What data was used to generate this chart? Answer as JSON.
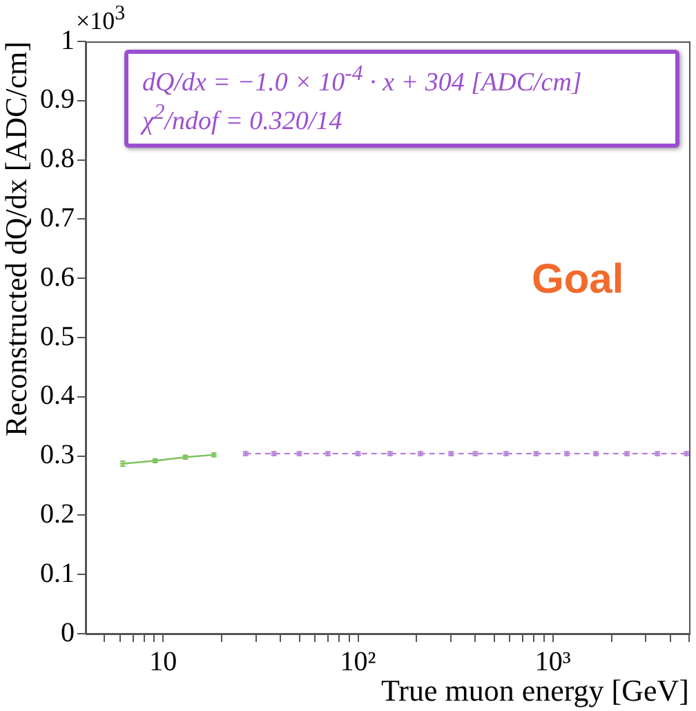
{
  "chart_data": {
    "type": "line",
    "xlabel": "True muon energy [GeV]",
    "ylabel": "Reconstructed dQ/dx [ADC/cm]",
    "log": "x",
    "xlim": [
      4,
      5000
    ],
    "ylim": [
      0,
      1
    ],
    "xticks": [
      {
        "value": 5,
        "label": null
      },
      {
        "value": 6,
        "label": null
      },
      {
        "value": 7,
        "label": null
      },
      {
        "value": 8,
        "label": null
      },
      {
        "value": 9,
        "label": null
      },
      {
        "value": 10,
        "label": "10"
      },
      {
        "value": 20,
        "label": null
      },
      {
        "value": 30,
        "label": null
      },
      {
        "value": 40,
        "label": null
      },
      {
        "value": 50,
        "label": null
      },
      {
        "value": 60,
        "label": null
      },
      {
        "value": 70,
        "label": null
      },
      {
        "value": 80,
        "label": null
      },
      {
        "value": 90,
        "label": null
      },
      {
        "value": 100,
        "label": "10²"
      },
      {
        "value": 200,
        "label": null
      },
      {
        "value": 300,
        "label": null
      },
      {
        "value": 400,
        "label": null
      },
      {
        "value": 500,
        "label": null
      },
      {
        "value": 600,
        "label": null
      },
      {
        "value": 700,
        "label": null
      },
      {
        "value": 800,
        "label": null
      },
      {
        "value": 900,
        "label": null
      },
      {
        "value": 1000,
        "label": "10³"
      },
      {
        "value": 2000,
        "label": null
      },
      {
        "value": 3000,
        "label": null
      },
      {
        "value": 4000,
        "label": null
      },
      {
        "value": 5000,
        "label": null
      }
    ],
    "yticks": [
      0,
      {
        "value": 0.1,
        "label": "0.1"
      },
      {
        "value": 0.2,
        "label": "0.2"
      },
      {
        "value": 0.3,
        "label": "0.3"
      },
      {
        "value": 0.4,
        "label": "0.4"
      },
      {
        "value": 0.5,
        "label": "0.5"
      },
      {
        "value": 0.6,
        "label": "0.6"
      },
      {
        "value": 0.7,
        "label": "0.7"
      },
      {
        "value": 0.8,
        "label": "0.8"
      },
      {
        "value": 0.9,
        "label": "0.9"
      },
      1
    ],
    "series": [
      {
        "color": "#7cc35a",
        "x": [
          6.2,
          9.1,
          13,
          18.2
        ],
        "values": [
          0.287,
          0.292,
          0.298,
          0.302
        ],
        "errors": [
          0.004,
          0.003,
          0.003,
          0.003
        ]
      },
      {
        "color": "#b580d8",
        "line_style": "dashed",
        "x": [
          26.5,
          37,
          50,
          70,
          100,
          146,
          209,
          300,
          400,
          575,
          820,
          1180,
          1660,
          2400,
          3440,
          4850
        ],
        "values": [
          0.304,
          0.304,
          0.304,
          0.304,
          0.304,
          0.304,
          0.304,
          0.304,
          0.304,
          0.304,
          0.304,
          0.304,
          0.304,
          0.304,
          0.304,
          0.304
        ],
        "errors": [
          0.003,
          0.003,
          0.003,
          0.003,
          0.003,
          0.003,
          0.003,
          0.003,
          0.003,
          0.003,
          0.003,
          0.003,
          0.003,
          0.003,
          0.003,
          0.003
        ]
      }
    ],
    "annotations": [
      "×10$^{3}$",
      "dQ/dx = −1.0 × 10$^{-4}$ · x + 304 [ADC/cm]",
      "χ$^{2}$/ndof = 0.320/14",
      "Goal"
    ],
    "marker": "cross",
    "grid": false,
    "legend": false
  }
}
